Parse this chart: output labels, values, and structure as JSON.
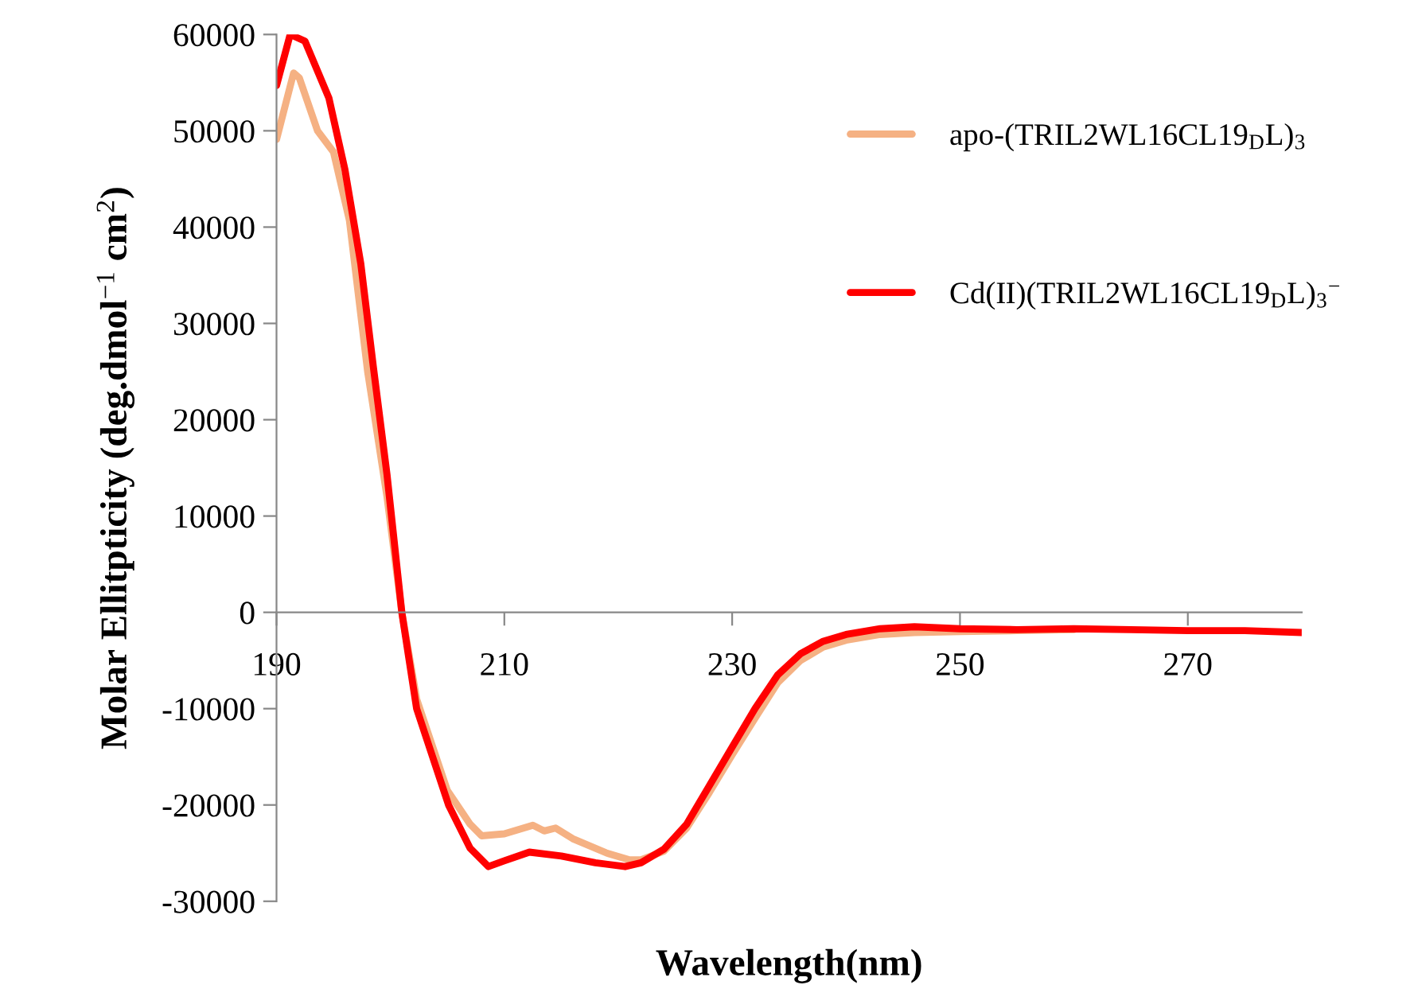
{
  "chart_data": {
    "type": "line",
    "xlabel": "Wavelength(nm)",
    "ylabel": "Molar Ellitpticity (deg.dmol$^{−1}$ cm$^{2}$)",
    "xlim": [
      190,
      280
    ],
    "xticks": [
      190,
      210,
      230,
      250,
      270
    ],
    "ylim": [
      -30000,
      60000
    ],
    "yticks": [
      {
        "value": -30000,
        "label": "-30000"
      },
      {
        "value": -20000,
        "label": "-20000"
      },
      {
        "value": -10000,
        "label": "-10000"
      },
      0,
      10000,
      20000,
      30000,
      40000,
      50000,
      60000
    ],
    "grid": false,
    "legend": "right",
    "marker": "none",
    "line_style": "solid",
    "series": [
      {
        "name": "apo-(TRIL2WL16CL19$_{D}$L)$_{3}$",
        "color": "#f5b183",
        "x": [
          190,
          191.5,
          192,
          193.6,
          195,
          196.4,
          198,
          199.7,
          201,
          202.3,
          205,
          207,
          208,
          210,
          212.5,
          213.5,
          214.5,
          216,
          219,
          221,
          222,
          224,
          226,
          228,
          230,
          232,
          234,
          236,
          238,
          240,
          243,
          246,
          250,
          255,
          260
        ],
        "values": [
          49100,
          56000,
          55500,
          50000,
          47800,
          40700,
          25000,
          12000,
          0,
          -9000,
          -18500,
          -22000,
          -23200,
          -23000,
          -22100,
          -22700,
          -22400,
          -23500,
          -25000,
          -25700,
          -25700,
          -24800,
          -22400,
          -18700,
          -14800,
          -11000,
          -7300,
          -5000,
          -3600,
          -2900,
          -2300,
          -2100,
          -2000,
          -1900,
          -1800
        ]
      },
      {
        "name": "Cd(II)(TRIL2WL16CL19$_{D}$L)$_{3}$$^{−}$",
        "color": "#ff0000",
        "x": [
          190,
          191.2,
          192.5,
          194.6,
          196,
          197.4,
          198.5,
          199.7,
          201,
          202.3,
          205.1,
          207,
          208.6,
          210,
          212.2,
          215,
          218,
          220.6,
          222,
          224,
          226,
          228,
          230,
          232,
          234,
          236,
          238,
          240,
          243,
          246,
          250,
          255,
          260,
          265,
          270,
          275,
          280
        ],
        "values": [
          54700,
          60000,
          59300,
          53400,
          46000,
          36200,
          25500,
          14300,
          0,
          -10000,
          -20000,
          -24500,
          -26400,
          -25800,
          -24900,
          -25300,
          -26000,
          -26400,
          -26000,
          -24600,
          -22000,
          -18000,
          -14000,
          -10000,
          -6500,
          -4300,
          -3000,
          -2300,
          -1700,
          -1500,
          -1700,
          -1800,
          -1700,
          -1800,
          -1900,
          -1900,
          -2100
        ]
      }
    ]
  }
}
